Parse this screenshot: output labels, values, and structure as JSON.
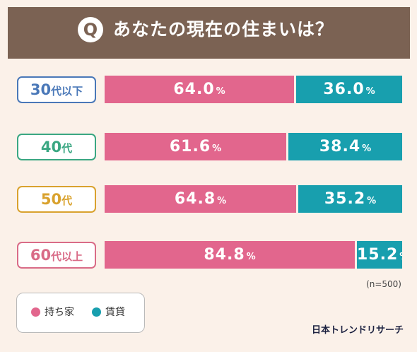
{
  "header": {
    "q_mark": "Q",
    "question": "あなたの現在の住まいは？"
  },
  "chart_data": {
    "type": "bar",
    "stacked": true,
    "orientation": "horizontal",
    "unit": "%",
    "categories": [
      {
        "num": "30",
        "suffix": "代以下"
      },
      {
        "num": "40",
        "suffix": "代"
      },
      {
        "num": "50",
        "suffix": "代"
      },
      {
        "num": "60",
        "suffix": "代以上"
      }
    ],
    "series": [
      {
        "name": "持ち家",
        "color": "#e2668d",
        "values": [
          64.0,
          61.6,
          64.8,
          84.8
        ]
      },
      {
        "name": "賃貸",
        "color": "#189fae",
        "values": [
          36.0,
          38.4,
          35.2,
          15.2
        ]
      }
    ],
    "label_colors": [
      "#4a78b8",
      "#3aa782",
      "#d9a22e",
      "#d96b87"
    ]
  },
  "note": "(n=500)",
  "legend": {
    "owned": "持ち家",
    "rent": "賃貸"
  },
  "brand": "日本トレンドリサーチ"
}
